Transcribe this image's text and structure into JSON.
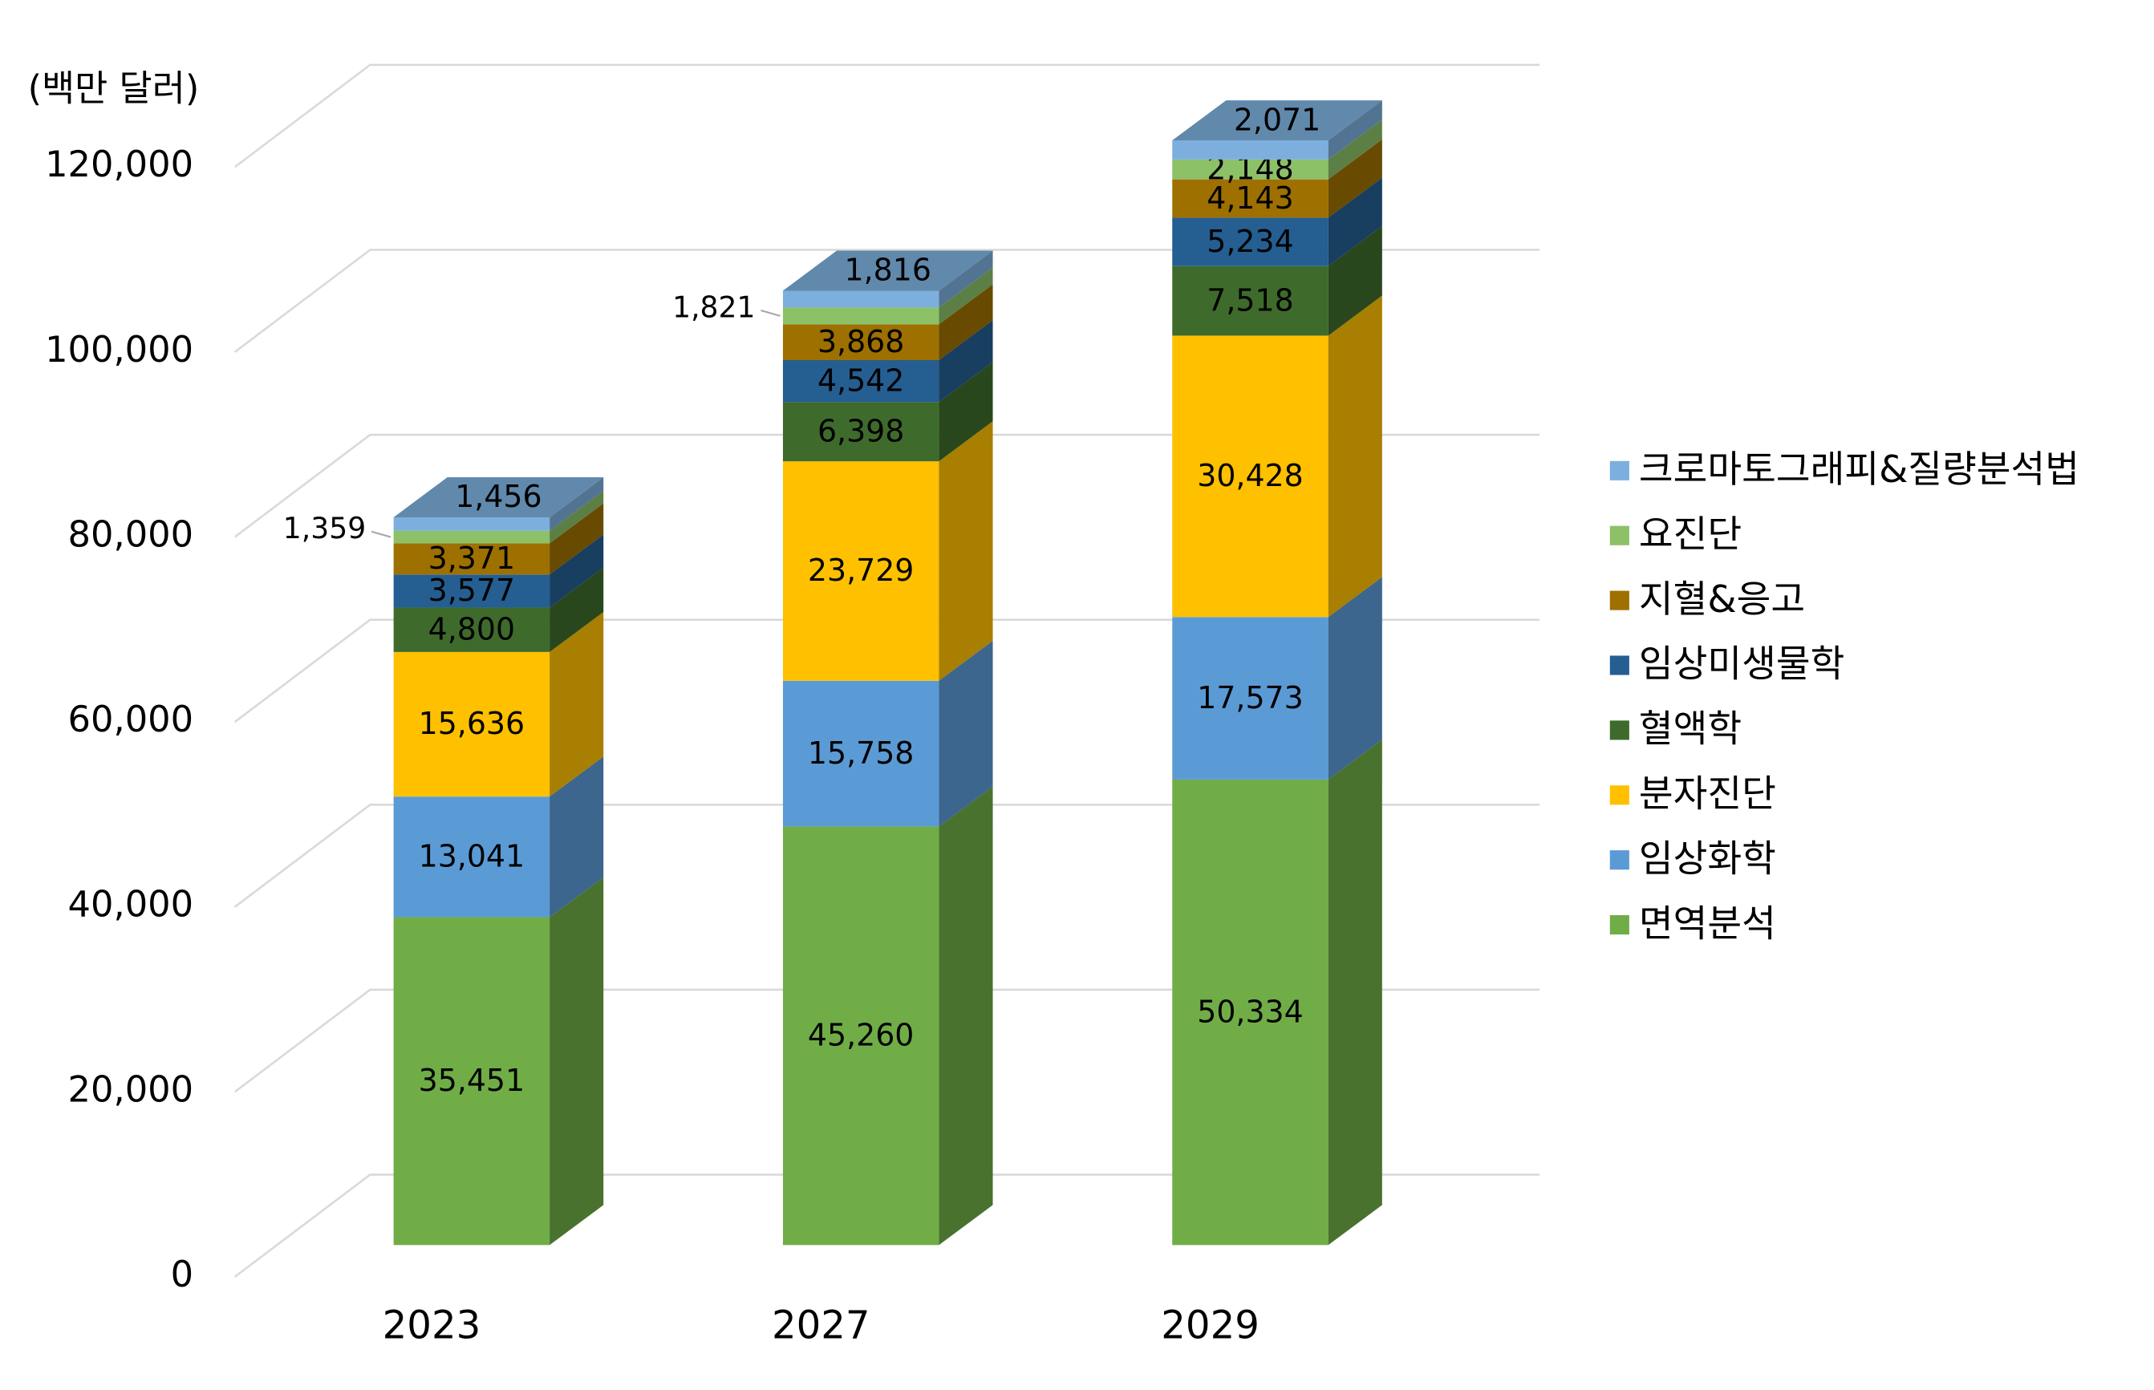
{
  "chart_data": {
    "type": "bar3d_stacked",
    "y_axis_label": "(백만 달러)",
    "categories": [
      "2023",
      "2027",
      "2029"
    ],
    "ylim": [
      0,
      120000
    ],
    "yticks": [
      0,
      {
        "value": 20000,
        "label": "20,000"
      },
      {
        "value": 40000,
        "label": "40,000"
      },
      {
        "value": 60000,
        "label": "60,000"
      },
      {
        "value": 80000,
        "label": "80,000"
      },
      {
        "value": 100000,
        "label": "100,000"
      },
      {
        "value": 120000,
        "label": "120,000"
      }
    ],
    "grid": true,
    "legend": "right",
    "series": [
      {
        "name": "면역분석",
        "color": "#70ad47",
        "label_color": "#404040",
        "values": [
          35451,
          45260,
          50334
        ],
        "value_labels": [
          "35,451",
          "45,260",
          "50,334"
        ]
      },
      {
        "name": "임상화학",
        "color": "#5b9bd5",
        "label_color": "#404040",
        "values": [
          13041,
          15758,
          17573
        ],
        "value_labels": [
          "13,041",
          "15,758",
          "17,573"
        ]
      },
      {
        "name": "분자진단",
        "color": "#ffc000",
        "label_color": "#404040",
        "values": [
          15636,
          23729,
          30428
        ],
        "value_labels": [
          "15,636",
          "23,729",
          "30,428"
        ]
      },
      {
        "name": "혈액학",
        "color": "#3e6b2b",
        "label_color": "#ffffff",
        "values": [
          4800,
          6398,
          7518
        ],
        "value_labels": [
          "4,800",
          "6,398",
          "7,518"
        ]
      },
      {
        "name": "임상미생물학",
        "color": "#255e91",
        "label_color": "#ffffff",
        "values": [
          3577,
          4542,
          5234
        ],
        "value_labels": [
          "3,577",
          "4,542",
          "5,234"
        ]
      },
      {
        "name": "지혈&응고",
        "color": "#9e7000",
        "label_color": "#ffffff",
        "values": [
          3371,
          3868,
          4143
        ],
        "value_labels": [
          "3,371",
          "3,868",
          "4,143"
        ]
      },
      {
        "name": "요진단",
        "color": "#8cc168",
        "label_color": "#000000",
        "values": [
          1359,
          1821,
          2148
        ],
        "value_labels": [
          "1,359",
          "1,821",
          "2,148"
        ]
      },
      {
        "name": "크로마토그래피&질량분석법",
        "color": "#7cafdd",
        "label_color": "#ffffff",
        "values": [
          1456,
          1816,
          2071
        ],
        "value_labels": [
          "1,456",
          "1,816",
          "2,071"
        ]
      }
    ]
  }
}
